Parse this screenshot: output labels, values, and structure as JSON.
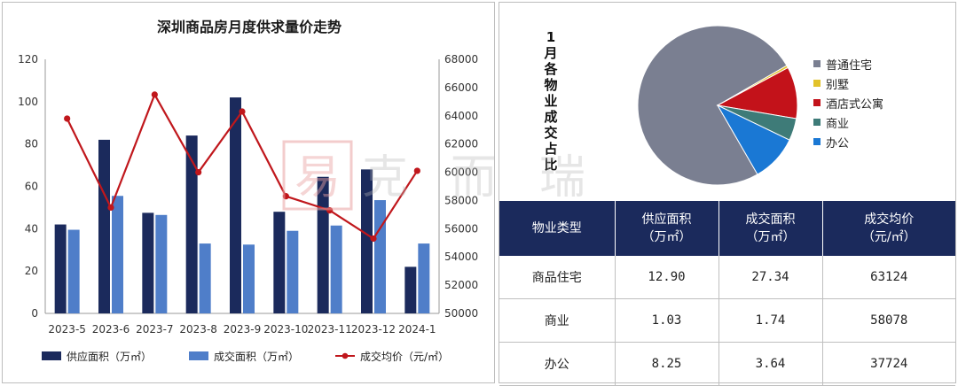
{
  "chart_data": [
    {
      "type": "bar",
      "title": "深圳商品房月度供求量价走势",
      "categories": [
        "2023-5",
        "2023-6",
        "2023-7",
        "2023-8",
        "2023-9",
        "2023-10",
        "2023-11",
        "2023-12",
        "2024-1"
      ],
      "series": [
        {
          "name": "供应面积（万㎡）",
          "type": "bar",
          "axis": "left",
          "color": "#1b2a5c",
          "values": [
            42,
            82,
            47.5,
            84,
            102,
            48,
            64.5,
            68,
            22
          ]
        },
        {
          "name": "成交面积（万㎡）",
          "type": "bar",
          "axis": "left",
          "color": "#4f7ec9",
          "values": [
            39.5,
            55.5,
            46.5,
            33,
            32.5,
            39,
            41.5,
            53.5,
            33
          ]
        },
        {
          "name": "成交均价（元/㎡）",
          "type": "line",
          "axis": "right",
          "color": "#c0171c",
          "values": [
            63800,
            57500,
            65500,
            60000,
            64300,
            58300,
            57300,
            55300,
            60100
          ]
        }
      ],
      "ylim_left": [
        0,
        120
      ],
      "yticks_left": [
        "0",
        "20",
        "40",
        "60",
        "80",
        "100",
        "120"
      ],
      "ylim_right": [
        50000,
        68000
      ],
      "yticks_right": [
        "50000",
        "52000",
        "54000",
        "56000",
        "58000",
        "60000",
        "62000",
        "64000",
        "66000",
        "68000"
      ],
      "legend": "bottom",
      "grid": false
    },
    {
      "type": "pie",
      "title": "1月各物业成交占比",
      "slices": [
        {
          "label": "普通住宅",
          "value": 75.0,
          "color": "#7a7f91"
        },
        {
          "label": "别墅",
          "value": 0.5,
          "color": "#e2c22a"
        },
        {
          "label": "酒店式公寓",
          "value": 10.5,
          "color": "#c3121a"
        },
        {
          "label": "商业",
          "value": 4.5,
          "color": "#3e7b78"
        },
        {
          "label": "办公",
          "value": 9.5,
          "color": "#1a78d4"
        }
      ],
      "legend": "right"
    }
  ],
  "table": {
    "headers": [
      [
        "物业类型",
        ""
      ],
      [
        "供应面积",
        "（万㎡）"
      ],
      [
        "成交面积",
        "（万㎡）"
      ],
      [
        "成交均价",
        "（元/㎡）"
      ]
    ],
    "rows": [
      [
        "商品住宅",
        "12.90",
        "27.34",
        "63124"
      ],
      [
        "商业",
        "1.03",
        "1.74",
        "58078"
      ],
      [
        "办公",
        "8.25",
        "3.64",
        "37724"
      ]
    ]
  },
  "watermark": "克而瑞"
}
